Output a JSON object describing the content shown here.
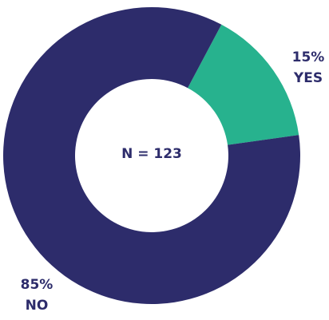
{
  "chart_data": {
    "type": "pie",
    "donut": true,
    "categories": [
      "YES",
      "NO"
    ],
    "values": [
      15,
      85
    ],
    "value_labels": [
      "15%",
      "85%"
    ],
    "colors": [
      "#27b28e",
      "#2d2c6b"
    ],
    "annotation": "N = 123"
  }
}
